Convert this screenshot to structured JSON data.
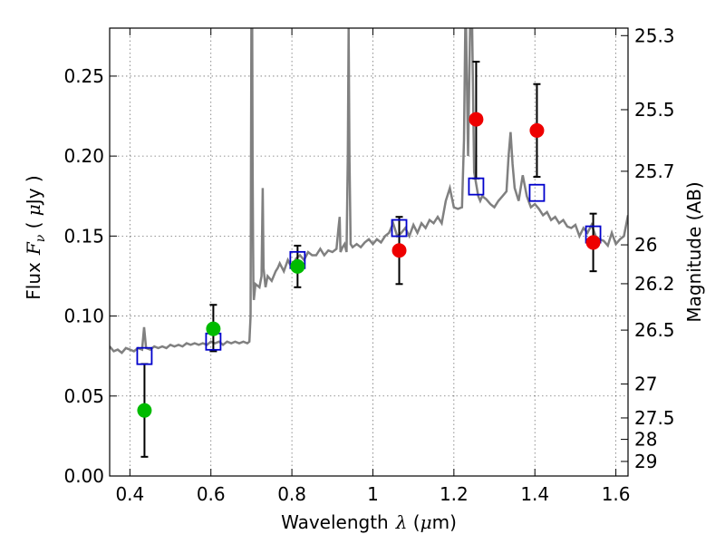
{
  "chart_data": {
    "type": "scatter",
    "xlabel": {
      "prefix": "Wavelength",
      "symbol": "λ",
      "unit_open": " (",
      "unit_mu": "μ",
      "unit_rest": "m)"
    },
    "ylabel": {
      "prefix": "Flux",
      "symbol": "F",
      "subscript": "ν",
      "unit_open": " ( ",
      "unit_mu": "μ",
      "unit_rest": "Jy )"
    },
    "y2label": "Magnitude (AB)",
    "xlim": [
      0.35,
      1.63
    ],
    "ylim": [
      0.0,
      0.28
    ],
    "grid": true,
    "x_ticks": [
      {
        "value": 0.4,
        "label": "0.4"
      },
      {
        "value": 0.6,
        "label": "0.6"
      },
      {
        "value": 0.8,
        "label": "0.8"
      },
      {
        "value": 1.0,
        "label": "1"
      },
      {
        "value": 1.2,
        "label": "1.2"
      },
      {
        "value": 1.4,
        "label": "1.4"
      },
      {
        "value": 1.6,
        "label": "1.6"
      }
    ],
    "y_ticks": [
      {
        "value": 0.0,
        "label": "0.00"
      },
      {
        "value": 0.05,
        "label": "0.05"
      },
      {
        "value": 0.1,
        "label": "0.10"
      },
      {
        "value": 0.15,
        "label": "0.15"
      },
      {
        "value": 0.2,
        "label": "0.20"
      },
      {
        "value": 0.25,
        "label": "0.25"
      }
    ],
    "mag_ticks": [
      {
        "label": "25.3",
        "flux": 0.2753
      },
      {
        "label": "25.5",
        "flux": 0.229
      },
      {
        "label": "25.7",
        "flux": 0.1905
      },
      {
        "label": "26",
        "flux": 0.1445
      },
      {
        "label": "26.2",
        "flux": 0.1202
      },
      {
        "label": "26.5",
        "flux": 0.0912
      },
      {
        "label": "27",
        "flux": 0.0575
      },
      {
        "label": "27.5",
        "flux": 0.0363
      },
      {
        "label": "28",
        "flux": 0.0229
      },
      {
        "label": "29",
        "flux": 0.0091
      }
    ],
    "colors": {
      "spectrum": "#808080",
      "model": "#0000cc",
      "detected_green": "#00bb00",
      "detected_red": "#ee0000",
      "errorbar": "#000000"
    },
    "spectrum": {
      "x": [
        0.35,
        0.36,
        0.37,
        0.38,
        0.39,
        0.4,
        0.41,
        0.42,
        0.43,
        0.435,
        0.44,
        0.45,
        0.46,
        0.47,
        0.48,
        0.49,
        0.5,
        0.51,
        0.52,
        0.53,
        0.54,
        0.55,
        0.56,
        0.57,
        0.58,
        0.59,
        0.6,
        0.61,
        0.62,
        0.63,
        0.64,
        0.65,
        0.66,
        0.67,
        0.68,
        0.69,
        0.695,
        0.698,
        0.7,
        0.702,
        0.703,
        0.704,
        0.705,
        0.706,
        0.708,
        0.71,
        0.72,
        0.725,
        0.728,
        0.73,
        0.735,
        0.74,
        0.75,
        0.76,
        0.765,
        0.77,
        0.78,
        0.79,
        0.8,
        0.81,
        0.82,
        0.83,
        0.84,
        0.85,
        0.86,
        0.87,
        0.88,
        0.89,
        0.9,
        0.91,
        0.915,
        0.918,
        0.92,
        0.925,
        0.93,
        0.935,
        0.938,
        0.94,
        0.942,
        0.945,
        0.95,
        0.96,
        0.97,
        0.98,
        0.99,
        1.0,
        1.01,
        1.02,
        1.03,
        1.04,
        1.05,
        1.06,
        1.07,
        1.08,
        1.09,
        1.1,
        1.11,
        1.12,
        1.13,
        1.14,
        1.15,
        1.16,
        1.17,
        1.18,
        1.19,
        1.2,
        1.21,
        1.22,
        1.225,
        1.228,
        1.23,
        1.235,
        1.24,
        1.245,
        1.25,
        1.26,
        1.265,
        1.27,
        1.28,
        1.29,
        1.3,
        1.31,
        1.32,
        1.33,
        1.335,
        1.34,
        1.345,
        1.35,
        1.36,
        1.37,
        1.38,
        1.39,
        1.4,
        1.41,
        1.42,
        1.43,
        1.44,
        1.45,
        1.46,
        1.47,
        1.48,
        1.49,
        1.5,
        1.51,
        1.52,
        1.53,
        1.54,
        1.55,
        1.56,
        1.57,
        1.58,
        1.59,
        1.6,
        1.61,
        1.62,
        1.63
      ],
      "y": [
        0.081,
        0.078,
        0.079,
        0.077,
        0.08,
        0.079,
        0.078,
        0.08,
        0.079,
        0.093,
        0.08,
        0.079,
        0.081,
        0.08,
        0.081,
        0.08,
        0.082,
        0.081,
        0.082,
        0.081,
        0.083,
        0.082,
        0.083,
        0.082,
        0.083,
        0.082,
        0.084,
        0.083,
        0.084,
        0.082,
        0.084,
        0.083,
        0.084,
        0.083,
        0.084,
        0.083,
        0.084,
        0.1,
        0.28,
        0.28,
        0.2,
        0.15,
        0.12,
        0.11,
        0.115,
        0.12,
        0.118,
        0.125,
        0.18,
        0.13,
        0.118,
        0.125,
        0.122,
        0.128,
        0.13,
        0.133,
        0.128,
        0.135,
        0.13,
        0.136,
        0.138,
        0.135,
        0.14,
        0.138,
        0.138,
        0.142,
        0.138,
        0.141,
        0.14,
        0.142,
        0.155,
        0.162,
        0.14,
        0.143,
        0.145,
        0.14,
        0.2,
        0.28,
        0.2,
        0.145,
        0.143,
        0.145,
        0.143,
        0.146,
        0.148,
        0.145,
        0.148,
        0.146,
        0.15,
        0.152,
        0.158,
        0.15,
        0.152,
        0.155,
        0.15,
        0.157,
        0.152,
        0.158,
        0.155,
        0.16,
        0.158,
        0.162,
        0.158,
        0.172,
        0.18,
        0.168,
        0.167,
        0.168,
        0.21,
        0.28,
        0.28,
        0.2,
        0.28,
        0.28,
        0.19,
        0.175,
        0.172,
        0.175,
        0.173,
        0.17,
        0.168,
        0.172,
        0.175,
        0.178,
        0.2,
        0.215,
        0.195,
        0.18,
        0.172,
        0.188,
        0.175,
        0.168,
        0.17,
        0.167,
        0.163,
        0.165,
        0.16,
        0.162,
        0.158,
        0.16,
        0.156,
        0.155,
        0.157,
        0.15,
        0.155,
        0.152,
        0.157,
        0.15,
        0.148,
        0.147,
        0.144,
        0.152,
        0.145,
        0.148,
        0.15,
        0.163
      ]
    },
    "model_points": [
      {
        "x": 0.436,
        "y": 0.075
      },
      {
        "x": 0.606,
        "y": 0.084
      },
      {
        "x": 0.814,
        "y": 0.135
      },
      {
        "x": 1.065,
        "y": 0.155
      },
      {
        "x": 1.255,
        "y": 0.181
      },
      {
        "x": 1.405,
        "y": 0.177
      },
      {
        "x": 1.544,
        "y": 0.151
      }
    ],
    "measurements": [
      {
        "x": 0.436,
        "y": 0.041,
        "err_low": 0.012,
        "err_high": 0.07,
        "color": "green"
      },
      {
        "x": 0.606,
        "y": 0.092,
        "err_low": 0.078,
        "err_high": 0.107,
        "color": "green"
      },
      {
        "x": 0.814,
        "y": 0.131,
        "err_low": 0.118,
        "err_high": 0.144,
        "color": "green"
      },
      {
        "x": 1.065,
        "y": 0.141,
        "err_low": 0.12,
        "err_high": 0.162,
        "color": "red"
      },
      {
        "x": 1.255,
        "y": 0.223,
        "err_low": 0.186,
        "err_high": 0.259,
        "color": "red"
      },
      {
        "x": 1.405,
        "y": 0.216,
        "err_low": 0.187,
        "err_high": 0.245,
        "color": "red"
      },
      {
        "x": 1.544,
        "y": 0.146,
        "err_low": 0.128,
        "err_high": 0.164,
        "color": "red"
      }
    ]
  }
}
